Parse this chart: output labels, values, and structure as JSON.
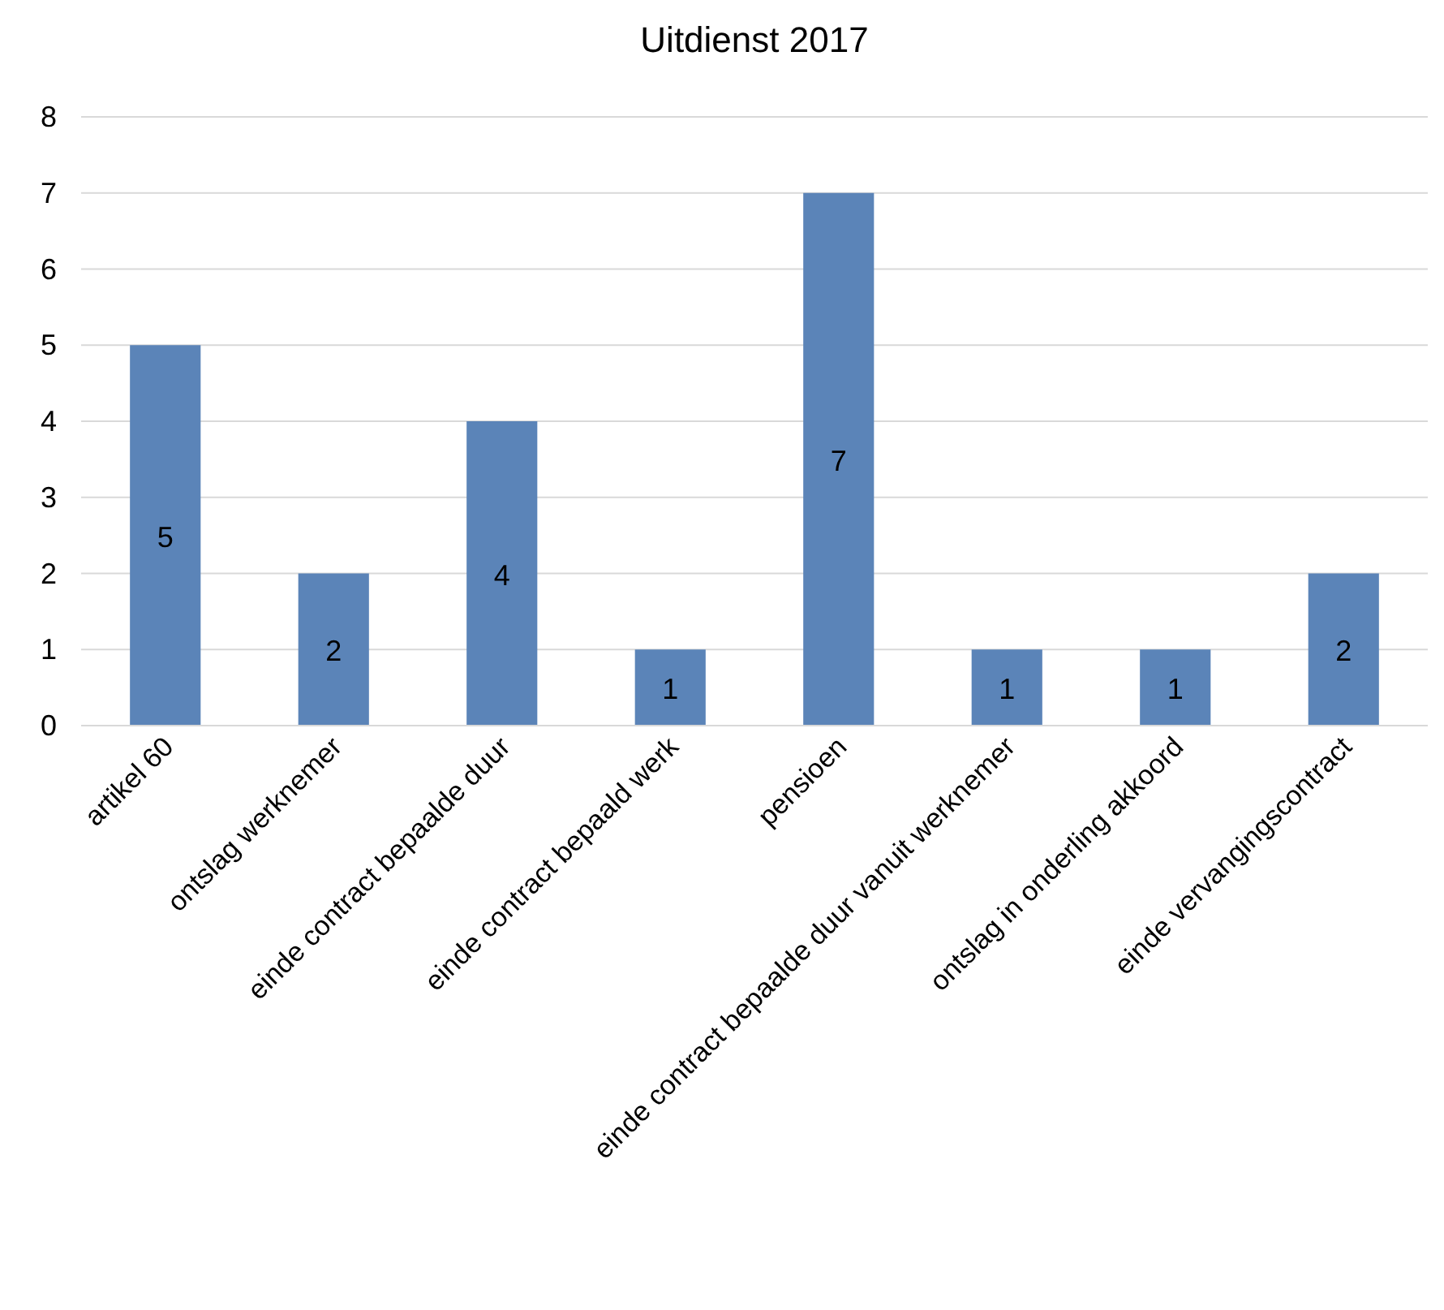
{
  "chart_data": {
    "type": "bar",
    "title": "Uitdienst 2017",
    "categories": [
      "artikel 60",
      "ontslag werknemer",
      "einde contract bepaalde duur",
      "einde contract bepaald werk",
      "pensioen",
      "einde contract bepaalde duur vanuit werknemer",
      "ontslag in onderling akkoord",
      "einde vervangingscontract"
    ],
    "values": [
      5,
      2,
      4,
      1,
      7,
      1,
      1,
      2
    ],
    "color": "#5b84b8",
    "ylim": [
      0,
      8
    ],
    "yticks": [
      0,
      1,
      2,
      3,
      4,
      5,
      6,
      7,
      8
    ],
    "grid": "y",
    "data_labels": true
  }
}
